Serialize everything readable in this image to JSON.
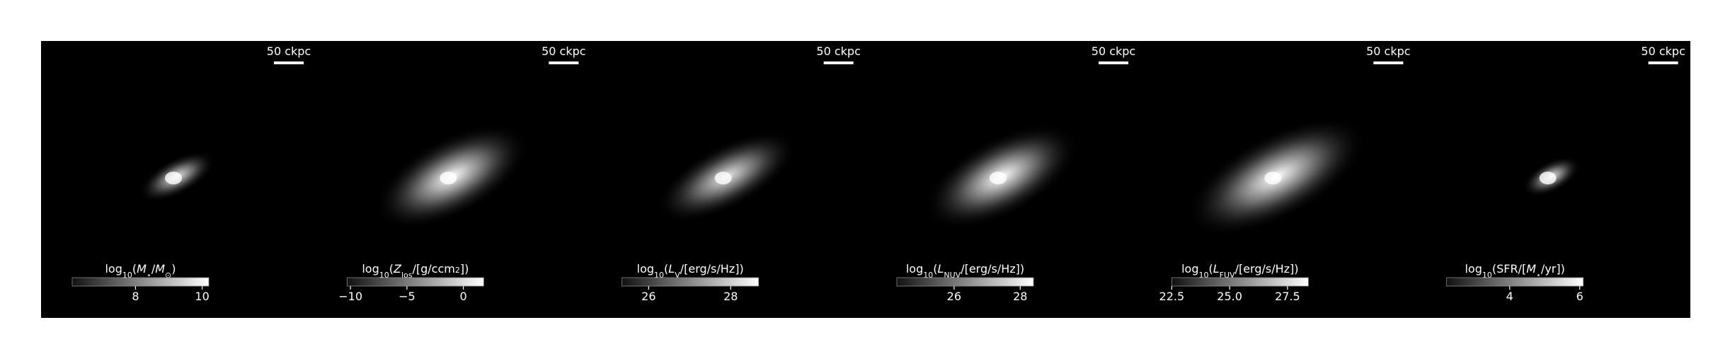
{
  "panels": [
    {
      "scale_label": "50 ckpc",
      "colorbar": {
        "label": [
          {
            "text": "log"
          },
          {
            "text": "10",
            "shift": "sub"
          },
          {
            "text": "("
          },
          {
            "text": "M",
            "italic": true
          },
          {
            "text": "⋆",
            "shift": "sub"
          },
          {
            "text": "/"
          },
          {
            "text": "M",
            "italic": true
          },
          {
            "text": "⊙",
            "shift": "sub"
          },
          {
            "text": ")"
          }
        ],
        "lim": [
          6.1,
          10.2
        ],
        "ticks": [
          8,
          10
        ]
      }
    },
    {
      "scale_label": "50 ckpc",
      "colorbar": {
        "label": [
          {
            "text": "log"
          },
          {
            "text": "10",
            "shift": "sub"
          },
          {
            "text": "("
          },
          {
            "text": "Z",
            "italic": true
          },
          {
            "text": "los",
            "shift": "sub"
          },
          {
            "text": "/[g/ccm"
          },
          {
            "text": "2",
            "shift": "sup"
          },
          {
            "text": "])"
          }
        ],
        "lim": [
          -10.3,
          1.8
        ],
        "ticks": [
          {
            "value": -10,
            "label": "−10"
          },
          {
            "value": -5,
            "label": "−5"
          },
          0
        ]
      }
    },
    {
      "scale_label": "50 ckpc",
      "colorbar": {
        "label": [
          {
            "text": "log"
          },
          {
            "text": "10",
            "shift": "sub"
          },
          {
            "text": "("
          },
          {
            "text": "L",
            "italic": true
          },
          {
            "text": "V",
            "shift": "sub"
          },
          {
            "text": "/[erg/s/Hz])"
          }
        ],
        "lim": [
          25.35,
          28.68
        ],
        "ticks": [
          26,
          28
        ]
      }
    },
    {
      "scale_label": "50 ckpc",
      "colorbar": {
        "label": [
          {
            "text": "log"
          },
          {
            "text": "10",
            "shift": "sub"
          },
          {
            "text": "("
          },
          {
            "text": "L",
            "italic": true
          },
          {
            "text": "NUV",
            "shift": "sub"
          },
          {
            "text": "/[erg/s/Hz])"
          }
        ],
        "lim": [
          24.27,
          28.4
        ],
        "ticks": [
          26,
          28
        ]
      }
    },
    {
      "scale_label": "50 ckpc",
      "colorbar": {
        "label": [
          {
            "text": "log"
          },
          {
            "text": "10",
            "shift": "sub"
          },
          {
            "text": "("
          },
          {
            "text": "L",
            "italic": true
          },
          {
            "text": "FUV",
            "shift": "sub"
          },
          {
            "text": "/[erg/s/Hz])"
          }
        ],
        "lim": [
          22.5,
          28.4
        ],
        "ticks": [
          22.5,
          {
            "value": 25,
            "label": "25.0"
          },
          27.5
        ]
      }
    },
    {
      "scale_label": "50 ckpc",
      "colorbar": {
        "label": [
          {
            "text": "log"
          },
          {
            "text": "10",
            "shift": "sub"
          },
          {
            "text": "(SFR/["
          },
          {
            "text": "M",
            "italic": true
          },
          {
            "text": "⋆",
            "shift": "sub"
          },
          {
            "text": "/yr])"
          }
        ],
        "lim": [
          2.2,
          6.1
        ],
        "ticks": [
          4,
          6
        ]
      }
    }
  ]
}
